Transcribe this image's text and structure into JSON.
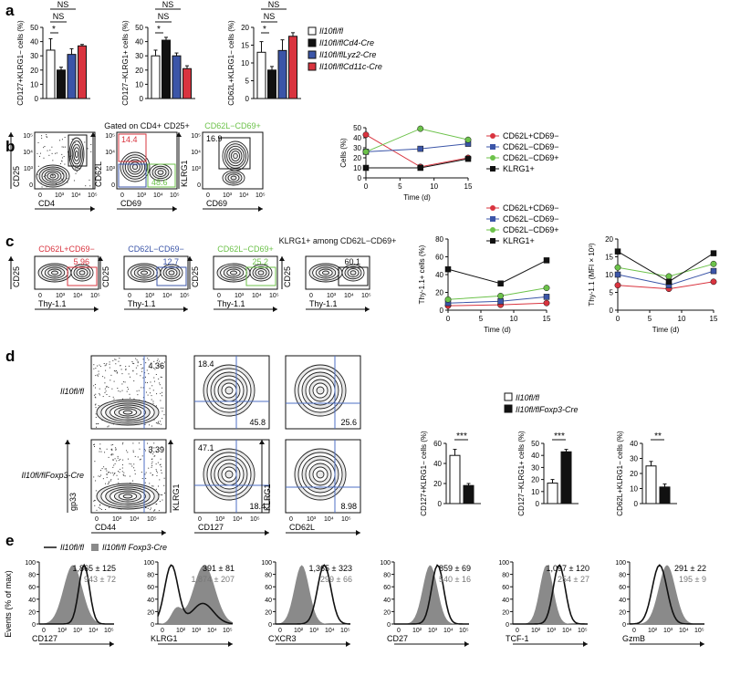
{
  "panels": {
    "a": "a",
    "b": "b",
    "c": "c",
    "d": "d",
    "e": "e"
  },
  "colors": {
    "wt": "#ffffff",
    "cd4": "#111111",
    "lyz2": "#3b55a8",
    "cd11c": "#d9343f",
    "red": "#d9343f",
    "blue": "#3b55a8",
    "green": "#6cc24a",
    "black": "#111111",
    "grey": "#8a8a8a"
  },
  "a": {
    "legend": [
      "Il10fl/fl",
      "Il10fl/flCd4-Cre",
      "Il10fl/flLyz2-Cre",
      "Il10fl/flCd11c-Cre"
    ],
    "sig_ns": "NS",
    "sig_star": "*",
    "charts": [
      {
        "ylabel": "CD127+KLRG1− cells (%)",
        "yticks": [
          "0",
          "10",
          "20",
          "30",
          "40",
          "50"
        ],
        "ymax": 50,
        "values": [
          34,
          20,
          31,
          37
        ],
        "errors": [
          8,
          2,
          4,
          1
        ]
      },
      {
        "ylabel": "CD127−KLRG1+ cells (%)",
        "yticks": [
          "0",
          "10",
          "20",
          "30",
          "40",
          "50"
        ],
        "ymax": 50,
        "values": [
          30,
          41,
          30,
          21
        ],
        "errors": [
          4,
          2,
          2,
          2
        ]
      },
      {
        "ylabel": "CD62L+KLRG1− cells (%)",
        "yticks": [
          "0",
          "5",
          "10",
          "15",
          "20"
        ],
        "ymax": 20,
        "values": [
          13,
          8,
          13.5,
          17.5
        ],
        "errors": [
          3,
          1,
          3,
          1
        ]
      }
    ]
  },
  "b": {
    "flow": [
      {
        "xlabel": "CD4",
        "ylabel": "CD25",
        "title": "",
        "gates": []
      },
      {
        "xlabel": "CD69",
        "ylabel": "CD62L",
        "title": "Gated on CD4+ CD25+",
        "gates": [
          "14.4",
          "48.6"
        ]
      },
      {
        "xlabel": "CD69",
        "ylabel": "KLRG1",
        "title": "CD62L−CD69+",
        "gates": [
          "16.9"
        ]
      }
    ],
    "ticks": [
      "0",
      "10³",
      "10⁴",
      "10⁵"
    ],
    "line": {
      "xlabel": "Time (d)",
      "ylabel": "Cells (%)",
      "xticks": [
        "0",
        "5",
        "10",
        "15"
      ],
      "yticks": [
        "0",
        "10",
        "20",
        "30",
        "40",
        "50"
      ],
      "x": [
        0,
        8,
        15
      ],
      "series": [
        {
          "name": "CD62L+CD69−",
          "values": [
            43,
            11,
            20
          ]
        },
        {
          "name": "CD62L−CD69−",
          "values": [
            26,
            29,
            34
          ]
        },
        {
          "name": "CD62L−CD69+",
          "values": [
            26,
            49,
            38
          ]
        },
        {
          "name": "KLRG1+",
          "values": [
            10,
            10,
            19
          ]
        }
      ]
    }
  },
  "c": {
    "flow": [
      {
        "title": "CD62L+CD69−",
        "gate": "5.96"
      },
      {
        "title": "CD62L−CD69−",
        "gate": "12.7"
      },
      {
        "title": "CD62L−CD69+",
        "gate": "25.2"
      },
      {
        "title": "KLRG1+ among CD62L−CD69+",
        "gate": "60.1"
      }
    ],
    "xlabel": "Thy-1.1",
    "ylabel": "CD25",
    "legend": [
      "CD62L+CD69−",
      "CD62L−CD69−",
      "CD62L−CD69+",
      "KLRG1+"
    ],
    "line1": {
      "ylabel": "Thy-1.1+ cells (%)",
      "xlabel": "Time (d)",
      "xticks": [
        "0",
        "5",
        "10",
        "15"
      ],
      "yticks": [
        "0",
        "20",
        "40",
        "60",
        "80"
      ],
      "x": [
        0,
        8,
        15
      ],
      "series": [
        {
          "values": [
            5,
            6,
            8
          ]
        },
        {
          "values": [
            8,
            10,
            15
          ]
        },
        {
          "values": [
            12,
            16,
            25
          ]
        },
        {
          "values": [
            46,
            30,
            56
          ]
        }
      ]
    },
    "line2": {
      "ylabel": "Thy-1.1 (MFI × 10³)",
      "xlabel": "Time (d)",
      "xticks": [
        "0",
        "5",
        "10",
        "15"
      ],
      "yticks": [
        "0",
        "5",
        "10",
        "15",
        "20"
      ],
      "x": [
        0,
        8,
        15
      ],
      "series": [
        {
          "values": [
            7,
            6,
            8
          ]
        },
        {
          "values": [
            10,
            7,
            11
          ]
        },
        {
          "values": [
            12,
            9.5,
            13
          ]
        },
        {
          "values": [
            16.5,
            8,
            16
          ]
        }
      ]
    }
  },
  "d": {
    "rowlabels": [
      "Il10fl/fl",
      "Il10fl/flFoxp3-Cre"
    ],
    "xlabels": [
      "CD44",
      "CD127",
      "CD62L"
    ],
    "ylabels": [
      "gp33",
      "KLRG1",
      "KLRG1"
    ],
    "gates": [
      [
        "4.36",
        "18.4",
        "45.8",
        "25.6"
      ],
      [
        "3.39",
        "47.1",
        "18.4",
        "8.98"
      ]
    ],
    "legend": [
      "Il10fl/fl",
      "Il10fl/flFoxp3-Cre"
    ],
    "bars": [
      {
        "ylabel": "CD127+KLRG1− cells (%)",
        "sig": "***",
        "yticks": [
          "0",
          "20",
          "40",
          "60"
        ],
        "ymax": 60,
        "values": [
          48,
          18
        ],
        "errors": [
          6,
          2
        ]
      },
      {
        "ylabel": "CD127−KLRG1+ cells (%)",
        "sig": "***",
        "yticks": [
          "0",
          "10",
          "20",
          "30",
          "40",
          "50"
        ],
        "ymax": 50,
        "values": [
          17,
          43
        ],
        "errors": [
          3,
          2
        ]
      },
      {
        "ylabel": "CD62L+KLRG1− cells (%)",
        "sig": "**",
        "yticks": [
          "0",
          "10",
          "20",
          "30",
          "40"
        ],
        "ymax": 40,
        "values": [
          25,
          11
        ],
        "errors": [
          3,
          2
        ]
      }
    ]
  },
  "e": {
    "legend": [
      "Il10fl/fl",
      "Il10fl/fl Foxp3-Cre"
    ],
    "ylabel": "Events (% of max)",
    "yticks": [
      "0",
      "20",
      "40",
      "60",
      "80",
      "100"
    ],
    "xticks": [
      "0",
      "10²",
      "10³",
      "10⁴",
      "10⁵"
    ],
    "hists": [
      {
        "xlabel": "CD127",
        "top": "1,865 ± 125",
        "bottom": "943 ± 72"
      },
      {
        "xlabel": "KLRG1",
        "top": "391 ± 81",
        "bottom": "1,874 ± 207"
      },
      {
        "xlabel": "CXCR3",
        "top": "1,365 ± 323",
        "bottom": "299 ± 66"
      },
      {
        "xlabel": "CD27",
        "top": "859 ± 69",
        "bottom": "540 ± 16"
      },
      {
        "xlabel": "TCF-1",
        "top": "1,097 ± 120",
        "bottom": "254 ± 27"
      },
      {
        "xlabel": "GzmB",
        "top": "291 ± 22",
        "bottom": "195 ± 9"
      }
    ]
  }
}
